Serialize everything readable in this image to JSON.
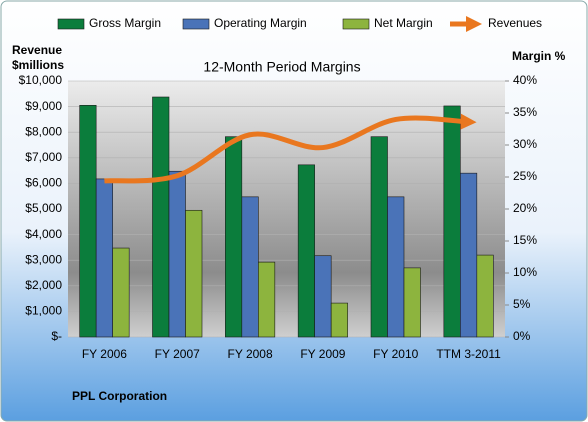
{
  "chart_data": {
    "type": "bar",
    "title": "12-Month Period Margins",
    "ylabel": [
      "Revenue",
      "$millions"
    ],
    "y2label": "Margin %",
    "company": "PPL Corporation",
    "categories": [
      "FY 2006",
      "FY 2007",
      "FY 2008",
      "FY 2009",
      "FY 2010",
      "TTM 3-2011"
    ],
    "series": [
      {
        "name": "Gross Margin",
        "color": "#0b7d3c",
        "axis": "y2",
        "values": [
          36.2,
          37.5,
          31.3,
          26.9,
          31.3,
          36.1
        ]
      },
      {
        "name": "Operating Margin",
        "color": "#4a73b8",
        "axis": "y2",
        "values": [
          24.7,
          25.9,
          21.9,
          12.7,
          21.9,
          25.6
        ]
      },
      {
        "name": "Net Margin",
        "color": "#8db43e",
        "axis": "y2",
        "values": [
          13.9,
          19.8,
          11.7,
          5.3,
          10.8,
          12.8
        ]
      },
      {
        "name": "Revenues",
        "color": "#e9771f",
        "type": "line",
        "values": [
          6100,
          6300,
          7900,
          7400,
          8500,
          8400
        ]
      }
    ],
    "ylim": [
      0,
      10000
    ],
    "yticks": [
      {
        "value": 0,
        "label": "$-"
      },
      {
        "value": 1000,
        "label": "$1,000"
      },
      {
        "value": 2000,
        "label": "$2,000"
      },
      {
        "value": 3000,
        "label": "$3,000"
      },
      {
        "value": 4000,
        "label": "$4,000"
      },
      {
        "value": 5000,
        "label": "$5,000"
      },
      {
        "value": 6000,
        "label": "$6,000"
      },
      {
        "value": 7000,
        "label": "$7,000"
      },
      {
        "value": 8000,
        "label": "$8,000"
      },
      {
        "value": 9000,
        "label": "$9,000"
      },
      {
        "value": 10000,
        "label": "$10,000"
      }
    ],
    "y2lim": [
      0,
      40
    ],
    "y2ticks": [
      {
        "value": 0,
        "label": "0%"
      },
      {
        "value": 5,
        "label": "5%"
      },
      {
        "value": 10,
        "label": "10%"
      },
      {
        "value": 15,
        "label": "15%"
      },
      {
        "value": 20,
        "label": "20%"
      },
      {
        "value": 25,
        "label": "25%"
      },
      {
        "value": 30,
        "label": "30%"
      },
      {
        "value": 35,
        "label": "35%"
      },
      {
        "value": 40,
        "label": "40%"
      }
    ],
    "grid": true
  }
}
